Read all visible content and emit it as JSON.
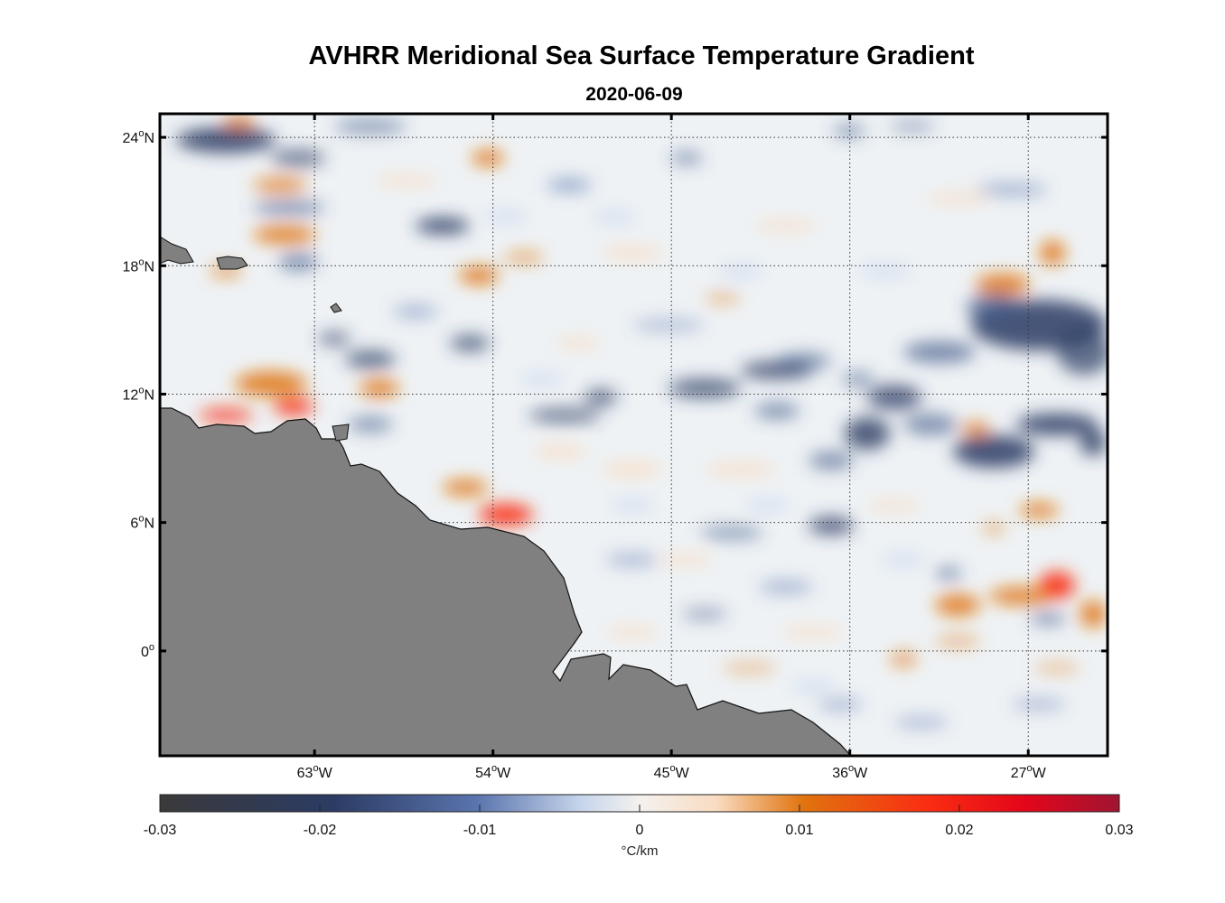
{
  "title": "AVHRR Meridional Sea Surface Temperature Gradient",
  "subtitle": "2020-06-09",
  "map": {
    "lat_labels": [
      {
        "lat": 24,
        "deg": "24",
        "suf": "N"
      },
      {
        "lat": 18,
        "deg": "18",
        "suf": "N"
      },
      {
        "lat": 12,
        "deg": "12",
        "suf": "N"
      },
      {
        "lat": 6,
        "deg": "6",
        "suf": "N"
      },
      {
        "lat": 0,
        "deg": "0",
        "suf": ""
      }
    ],
    "lon_labels": [
      {
        "lon": -63,
        "deg": "63",
        "suf": "W"
      },
      {
        "lon": -54,
        "deg": "54",
        "suf": "W"
      },
      {
        "lon": -45,
        "deg": "45",
        "suf": "W"
      },
      {
        "lon": -36,
        "deg": "36",
        "suf": "W"
      },
      {
        "lon": -27,
        "deg": "27",
        "suf": "W"
      }
    ],
    "land_color": "#808080"
  },
  "colorbar": {
    "ticks": [
      "-0.03",
      "-0.02",
      "-0.01",
      "0",
      "0.01",
      "0.02",
      "0.03"
    ],
    "unit": "°C/km",
    "colors": [
      "#3a3a3a",
      "#2b3b63",
      "#5a74ad",
      "#e3ecf6",
      "#f4f1ee",
      "#f9dcc1",
      "#e0740f",
      "#fa2d12",
      "#e4061a",
      "#a01432"
    ]
  }
}
